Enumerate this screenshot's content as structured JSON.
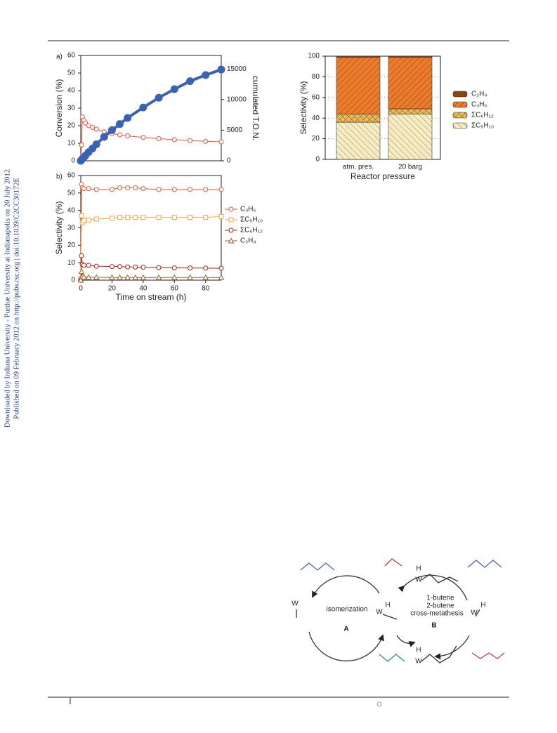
{
  "side_text": [
    "Downloaded by Indiana University - Purdue University at Indianapolis on 20 July 2012",
    "Published on 09 February 2012 on http://pubs.rsc.org | doi:10.1039/C2CC30172E"
  ],
  "chart_data": [
    {
      "type": "line",
      "panel_label": "a)",
      "ylabel": "Conversion (%)",
      "y2label": "cumulated T.O.N.",
      "x": [
        0,
        0.5,
        1,
        2,
        3,
        5,
        7.5,
        10,
        15,
        20,
        25,
        30,
        40,
        50,
        60,
        70,
        80,
        90
      ],
      "xlim": [
        0,
        90
      ],
      "ylim": [
        0,
        60
      ],
      "yticks": [
        0,
        10,
        20,
        30,
        40,
        50,
        60
      ],
      "y2lim": [
        0,
        17200
      ],
      "y2ticks": [
        0,
        5000,
        10000,
        15000
      ],
      "series": [
        {
          "name": "Conversion",
          "color": "#e8553f",
          "marker": "circle",
          "values": [
            0,
            9,
            25,
            23,
            21.5,
            20,
            19,
            18,
            16.5,
            15.5,
            14.8,
            14.2,
            13.3,
            12.6,
            12,
            11.5,
            11.1,
            10.8
          ]
        },
        {
          "name": "T.O.N.",
          "color": "#3a62b3",
          "marker": "dot",
          "axis": "y2",
          "values": [
            0,
            150,
            300,
            550,
            850,
            1400,
            2000,
            2700,
            3900,
            5000,
            6000,
            7000,
            8700,
            10300,
            11700,
            13000,
            14000,
            14900
          ]
        }
      ]
    },
    {
      "type": "line",
      "panel_label": "b)",
      "ylabel": "Selectivity (%)",
      "xlabel": "Time on stream (h)",
      "x": [
        0,
        0.5,
        1,
        2,
        5,
        10,
        20,
        25,
        30,
        35,
        40,
        50,
        60,
        70,
        80,
        90
      ],
      "xlim": [
        0,
        90
      ],
      "xticks": [
        0,
        20,
        40,
        60,
        80
      ],
      "ylim": [
        0,
        60
      ],
      "yticks": [
        0,
        10,
        20,
        30,
        40,
        50,
        60
      ],
      "legend": "right",
      "series": [
        {
          "name": "C₃H₆",
          "color": "#e85a3c",
          "marker": "circle",
          "values": [
            1,
            55,
            53,
            52.5,
            52.5,
            52,
            52,
            53,
            53,
            53,
            52.5,
            52,
            52,
            52,
            52,
            52
          ]
        },
        {
          "name": "ΣC₅H₁₀",
          "color": "#f4a64c",
          "marker": "square",
          "values": [
            0,
            37,
            33,
            34,
            34.5,
            35,
            35.5,
            36,
            36,
            36,
            36,
            36,
            36,
            36,
            36,
            36.5
          ]
        },
        {
          "name": "ΣC₆H₁₂",
          "color": "#a8231e",
          "marker": "circle",
          "values": [
            0,
            14,
            9,
            8.5,
            8.5,
            8,
            7.8,
            7.8,
            7.6,
            7.5,
            7.4,
            7.2,
            7,
            7,
            6.9,
            6.8
          ]
        },
        {
          "name": "C₂H₄",
          "color": "#a0622c",
          "marker": "triangle",
          "values": [
            0,
            5,
            2,
            1.8,
            1.7,
            1.6,
            1.5,
            1.5,
            1.5,
            1.5,
            1.5,
            1.5,
            1.5,
            1.5,
            1.5,
            1.5
          ]
        }
      ]
    },
    {
      "type": "stacked_bar",
      "ylabel": "Selectivity (%)",
      "xlabel": "Reactor pressure",
      "categories": [
        "atm. pres.",
        "20 barg"
      ],
      "ylim": [
        0,
        100
      ],
      "yticks": [
        0,
        20,
        40,
        60,
        80,
        100
      ],
      "grid": true,
      "legend": "right",
      "series": [
        {
          "name": "C₂H₄",
          "color": "#8b4513",
          "values": [
            1,
            1
          ]
        },
        {
          "name": "C₃H₆",
          "color": "#ee7a2a",
          "values": [
            55,
            50
          ]
        },
        {
          "name": "ΣC₆H₁₂",
          "color": "#f0b850",
          "values": [
            8,
            5
          ]
        },
        {
          "name": "ΣC₅H₁₀",
          "color": "#f8ecc0",
          "values": [
            36,
            44
          ]
        }
      ]
    }
  ],
  "scheme": {
    "labels": [
      "isomerization",
      "A",
      "1-butene",
      "2-butene",
      "cross-metathesis",
      "B"
    ],
    "atoms": [
      "W",
      "W",
      "H",
      "H",
      "W",
      "W",
      "H",
      "H",
      "W"
    ]
  }
}
